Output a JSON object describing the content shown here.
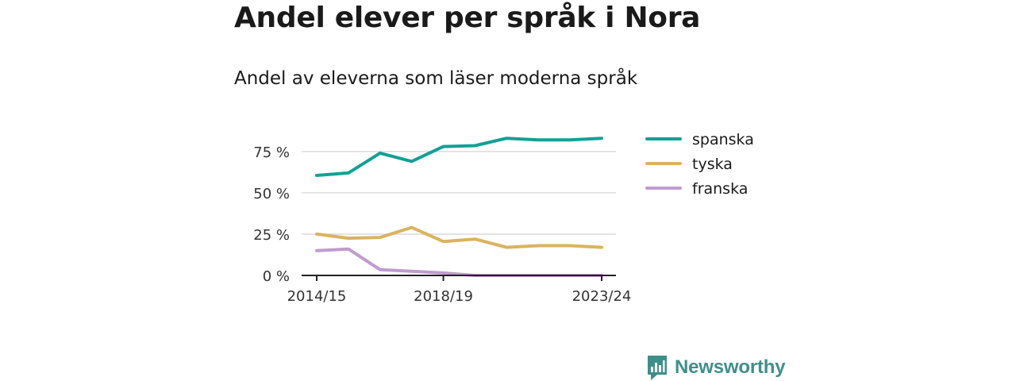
{
  "title": "Andel elever per språk i Nora",
  "subtitle": "Andel av eleverna som läser moderna språk",
  "brand": {
    "name": "Newsworthy",
    "color": "#3d8f8a",
    "icon": "newsworthy-logo-icon"
  },
  "chart_data": {
    "type": "line",
    "x": [
      "2014/15",
      "2015/16",
      "2016/17",
      "2017/18",
      "2018/19",
      "2019/20",
      "2020/21",
      "2021/22",
      "2022/23",
      "2023/24"
    ],
    "x_tick_labels": [
      "2014/15",
      "2018/19",
      "2023/24"
    ],
    "y_ticks": [
      0,
      25,
      50,
      75
    ],
    "y_tick_labels": [
      "0 %",
      "25 %",
      "50 %",
      "75 %"
    ],
    "ylim": [
      0,
      85
    ],
    "grid": true,
    "legend_position": "right",
    "series": [
      {
        "name": "spanska",
        "color": "#14a095",
        "values": [
          60.5,
          62,
          74,
          69,
          78,
          78.5,
          83,
          82,
          82,
          83
        ]
      },
      {
        "name": "tyska",
        "color": "#d9b35f",
        "values": [
          25,
          22.5,
          23,
          29,
          20.5,
          22,
          17,
          18,
          18,
          17
        ]
      },
      {
        "name": "franska",
        "color": "#bf9bcf",
        "values": [
          15,
          16,
          3.5,
          2.5,
          1.5,
          0,
          0,
          0,
          0,
          0
        ]
      }
    ]
  }
}
